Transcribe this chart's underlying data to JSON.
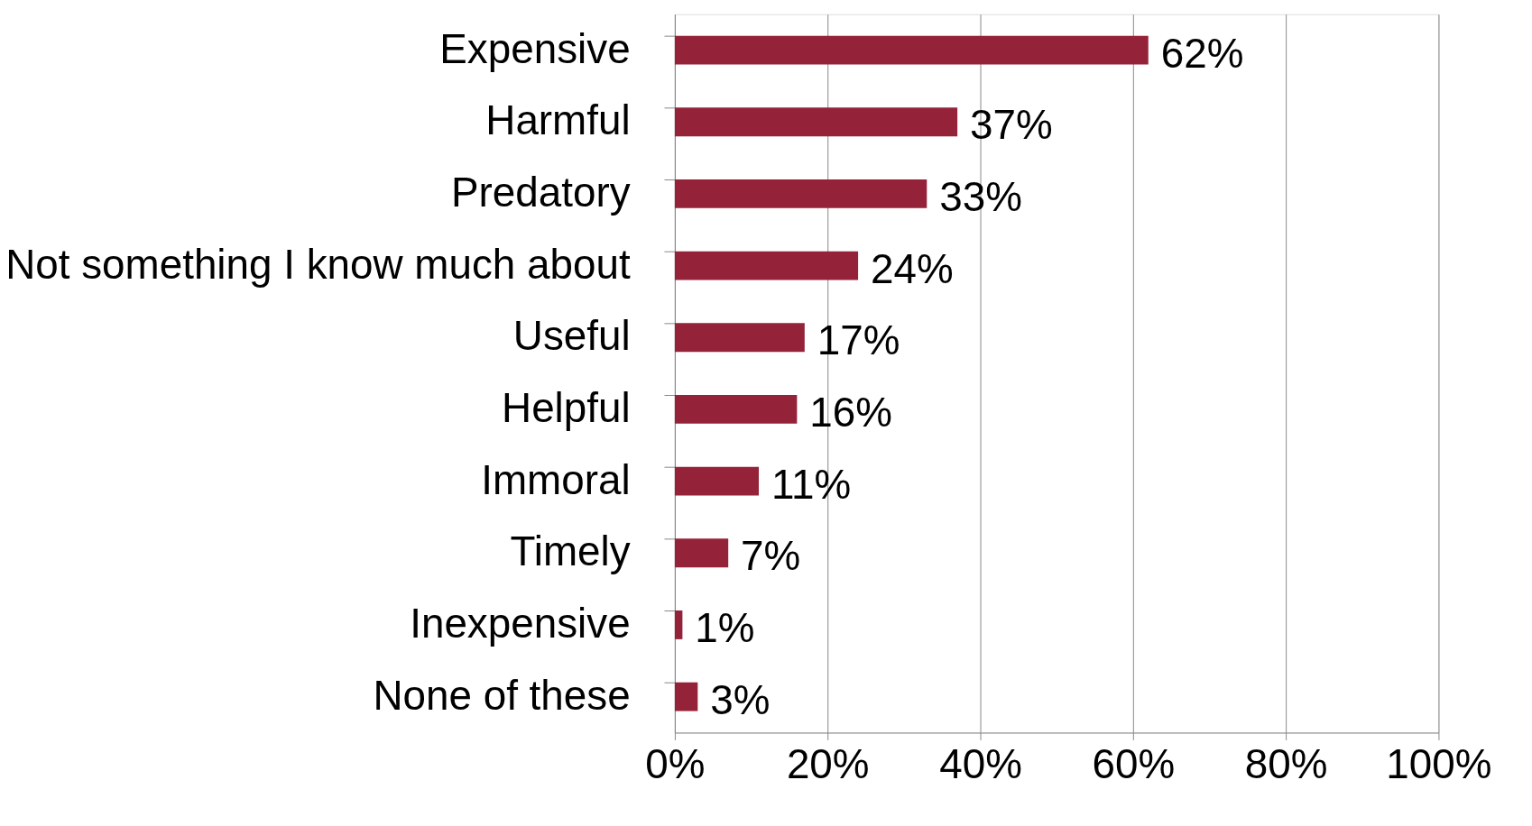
{
  "chart_data": {
    "type": "bar",
    "orientation": "horizontal",
    "categories": [
      "Expensive",
      "Harmful",
      "Predatory",
      "Not something I know much about",
      "Useful",
      "Helpful",
      "Immoral",
      "Timely",
      "Inexpensive",
      "None of these"
    ],
    "values": [
      62,
      37,
      33,
      24,
      17,
      16,
      11,
      7,
      1,
      3
    ],
    "value_labels": [
      "62%",
      "37%",
      "33%",
      "24%",
      "17%",
      "16%",
      "11%",
      "7%",
      "1%",
      "3%"
    ],
    "color": "#94233a",
    "xlim": [
      0,
      100
    ],
    "xticks": [
      {
        "value": 0,
        "label": "0%"
      },
      {
        "value": 20,
        "label": "20%"
      },
      {
        "value": 40,
        "label": "40%"
      },
      {
        "value": 60,
        "label": "60%"
      },
      {
        "value": 80,
        "label": "80%"
      },
      {
        "value": 100,
        "label": "100%"
      }
    ],
    "grid": "x"
  }
}
